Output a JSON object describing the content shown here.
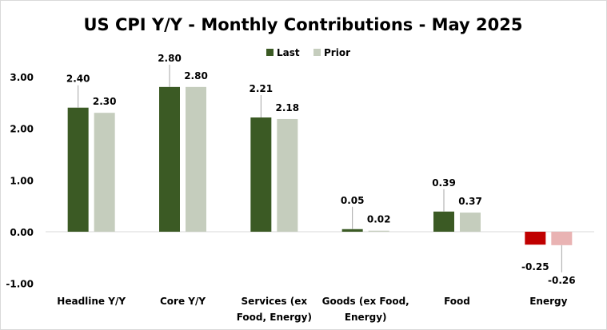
{
  "chart_data": {
    "type": "bar",
    "title": "US CPI Y/Y - Monthly Contributions - May 2025",
    "categories": [
      [
        "Headline Y/Y"
      ],
      [
        "Core Y/Y"
      ],
      [
        "Services (ex",
        "Food, Energy)"
      ],
      [
        "Goods (ex Food,",
        "Energy)"
      ],
      [
        "Food"
      ],
      [
        "Energy"
      ]
    ],
    "series": [
      {
        "name": "Last",
        "values": [
          2.4,
          2.8,
          2.21,
          0.05,
          0.39,
          -0.25
        ],
        "color": "#3b5a24",
        "negative_color": "#c00000"
      },
      {
        "name": "Prior",
        "values": [
          2.3,
          2.8,
          2.18,
          0.02,
          0.37,
          -0.26
        ],
        "color": "#c5cdbd",
        "negative_color": "#e9b3b3"
      }
    ],
    "data_labels": [
      [
        "2.40",
        "2.80",
        "2.21",
        "0.05",
        "0.39",
        "-0.25"
      ],
      [
        "2.30",
        "2.80",
        "2.18",
        "0.02",
        "0.37",
        "-0.26"
      ]
    ],
    "ylim": [
      -1,
      3
    ],
    "yticks": [
      "-1.00",
      "0.00",
      "1.00",
      "2.00",
      "3.00"
    ],
    "ytick_values": [
      -1,
      0,
      1,
      2,
      3
    ],
    "xlabel": "",
    "ylabel": "",
    "grid": false,
    "legend_position": "top"
  }
}
